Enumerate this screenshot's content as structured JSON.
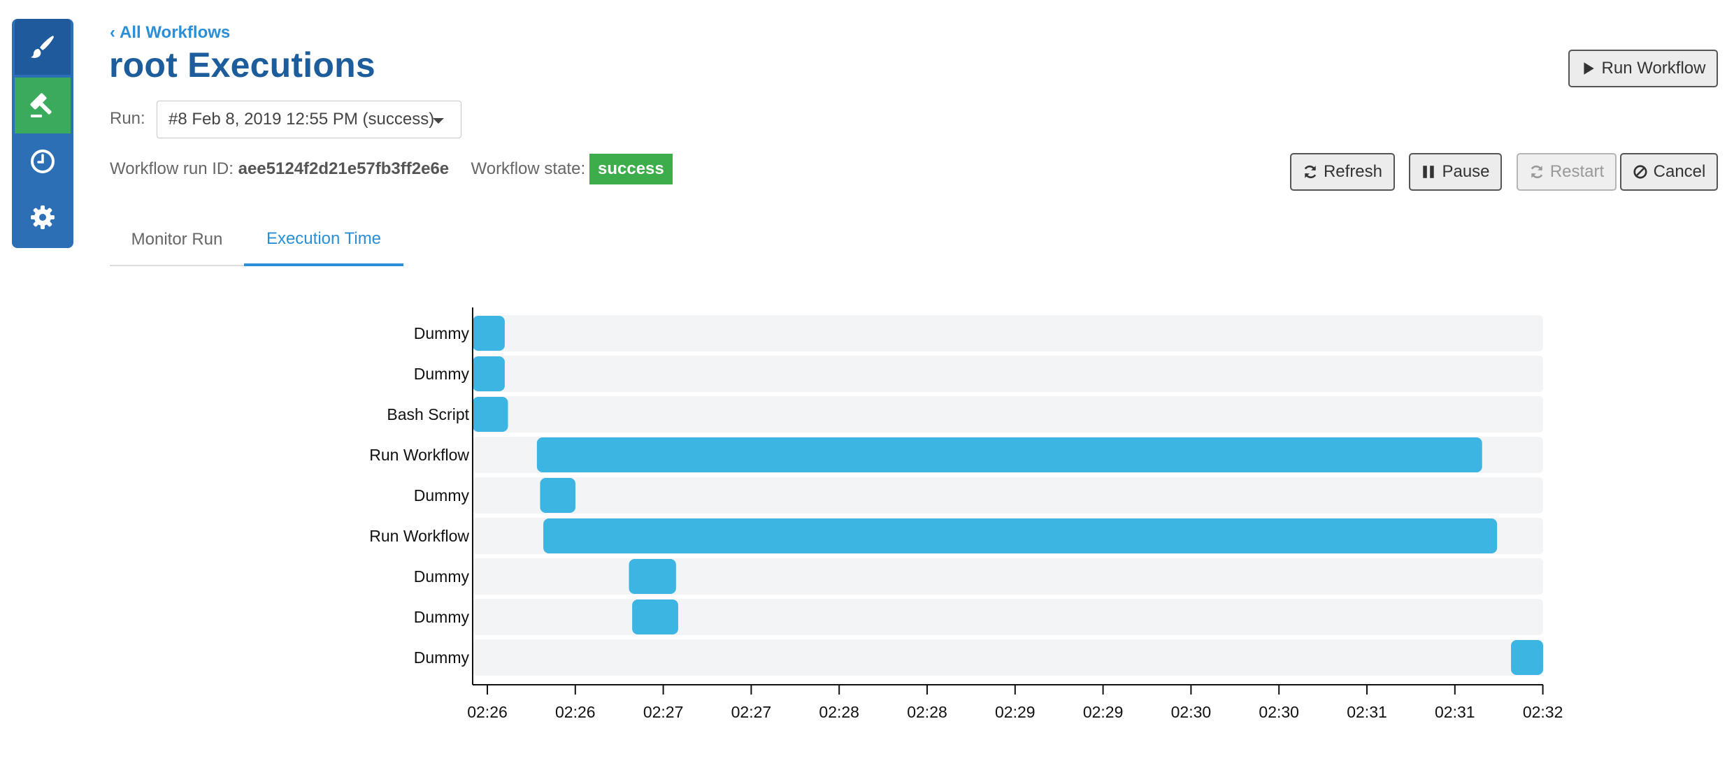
{
  "sidebar": {
    "items": [
      {
        "icon": "paintbrush-icon",
        "active": false
      },
      {
        "icon": "gavel-icon",
        "active": true
      },
      {
        "icon": "clock-icon",
        "active": false
      },
      {
        "icon": "gear-icon",
        "active": false
      }
    ]
  },
  "header": {
    "back_link": "All Workflows",
    "title": "root Executions",
    "run_label": "Run:",
    "run_select_value": "#8 Feb 8, 2019 12:55 PM (success)",
    "run_id_label": "Workflow run ID:",
    "run_id": "aee5124f2d21e57fb3ff2e6e",
    "state_label": "Workflow state:",
    "state": "success"
  },
  "buttons": {
    "run_workflow": "Run Workflow",
    "refresh": "Refresh",
    "pause": "Pause",
    "restart": "Restart",
    "cancel": "Cancel"
  },
  "tabs": [
    {
      "label": "Monitor Run",
      "active": false
    },
    {
      "label": "Execution Time",
      "active": true
    }
  ],
  "colors": {
    "accent": "#2a8fd6",
    "title": "#1d5d9b",
    "success": "#3dac4b",
    "bar": "#3db5e3",
    "track": "#f3f4f6"
  },
  "chart_data": {
    "type": "gantt",
    "x_axis_ticks": [
      "02:26",
      "02:26",
      "02:27",
      "02:27",
      "02:28",
      "02:28",
      "02:29",
      "02:29",
      "02:30",
      "02:30",
      "02:31",
      "02:31",
      "02:32"
    ],
    "rows": [
      {
        "label": "Dummy",
        "start": 0.0,
        "end": 0.03
      },
      {
        "label": "Dummy",
        "start": 0.0,
        "end": 0.03
      },
      {
        "label": "Bash Script",
        "start": 0.0,
        "end": 0.033
      },
      {
        "label": "Run Workflow",
        "start": 0.06,
        "end": 0.943
      },
      {
        "label": "Dummy",
        "start": 0.063,
        "end": 0.096
      },
      {
        "label": "Run Workflow",
        "start": 0.066,
        "end": 0.957
      },
      {
        "label": "Dummy",
        "start": 0.146,
        "end": 0.19
      },
      {
        "label": "Dummy",
        "start": 0.149,
        "end": 0.192
      },
      {
        "label": "Dummy",
        "start": 0.97,
        "end": 1.0
      }
    ]
  }
}
